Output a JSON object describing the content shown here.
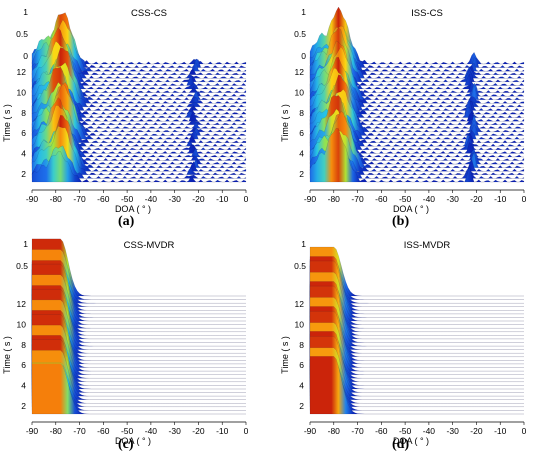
{
  "chart_data": [
    {
      "type": "waterfall-surface",
      "title": "CSS-CS",
      "caption": "(a)",
      "xlabel": "DOA ( ° )",
      "ylabel": "Time ( s )",
      "xlim": [
        -90,
        0
      ],
      "x_ticks": [
        "-90",
        "-80",
        "-70",
        "-60",
        "-50",
        "-40",
        "-30",
        "-20",
        "-10",
        "0"
      ],
      "time_ticks": [
        "2",
        "4",
        "6",
        "8",
        "10",
        "12"
      ],
      "z_ticks": [
        "0",
        "0.5",
        "1"
      ],
      "peaks_doa": [
        -78,
        -22
      ],
      "peak_levels": [
        1.0,
        0.15
      ]
    },
    {
      "type": "waterfall-surface",
      "title": "ISS-CS",
      "caption": "(b)",
      "xlabel": "DOA ( ° )",
      "ylabel": "Time ( s )",
      "xlim": [
        -90,
        0
      ],
      "x_ticks": [
        "-90",
        "-80",
        "-70",
        "-60",
        "-50",
        "-40",
        "-30",
        "-20",
        "-10",
        "0"
      ],
      "time_ticks": [
        "2",
        "4",
        "6",
        "8",
        "10",
        "12"
      ],
      "z_ticks": [
        "0",
        "0.5",
        "1"
      ],
      "peaks_doa": [
        -78,
        -22
      ],
      "peak_levels": [
        1.0,
        0.25
      ]
    },
    {
      "type": "waterfall-surface",
      "title": "CSS-MVDR",
      "caption": "(c)",
      "xlabel": "DOA ( ° )",
      "ylabel": "Time ( s )",
      "xlim": [
        -90,
        0
      ],
      "x_ticks": [
        "-90",
        "-80",
        "-70",
        "-60",
        "-50",
        "-40",
        "-30",
        "-20",
        "-10",
        "0"
      ],
      "time_ticks": [
        "2",
        "4",
        "6",
        "8",
        "10",
        "12"
      ],
      "z_ticks": [
        "0.5",
        "1"
      ],
      "peaks_doa": [
        -78
      ],
      "peak_levels": [
        1.0
      ]
    },
    {
      "type": "waterfall-surface",
      "title": "ISS-MVDR",
      "caption": "(d)",
      "xlabel": "DOA ( ° )",
      "ylabel": "Time ( s )",
      "xlim": [
        -90,
        0
      ],
      "x_ticks": [
        "-90",
        "-80",
        "-70",
        "-60",
        "-50",
        "-40",
        "-30",
        "-20",
        "-10",
        "0"
      ],
      "time_ticks": [
        "2",
        "4",
        "6",
        "8",
        "10",
        "12"
      ],
      "z_ticks": [
        "0.5",
        "1"
      ],
      "peaks_doa": [
        -80
      ],
      "peak_levels": [
        1.0
      ]
    }
  ],
  "colors": {
    "surface_low": "#0a1fb4",
    "surface_high": "#c81e0a",
    "background": "#ffffff"
  }
}
